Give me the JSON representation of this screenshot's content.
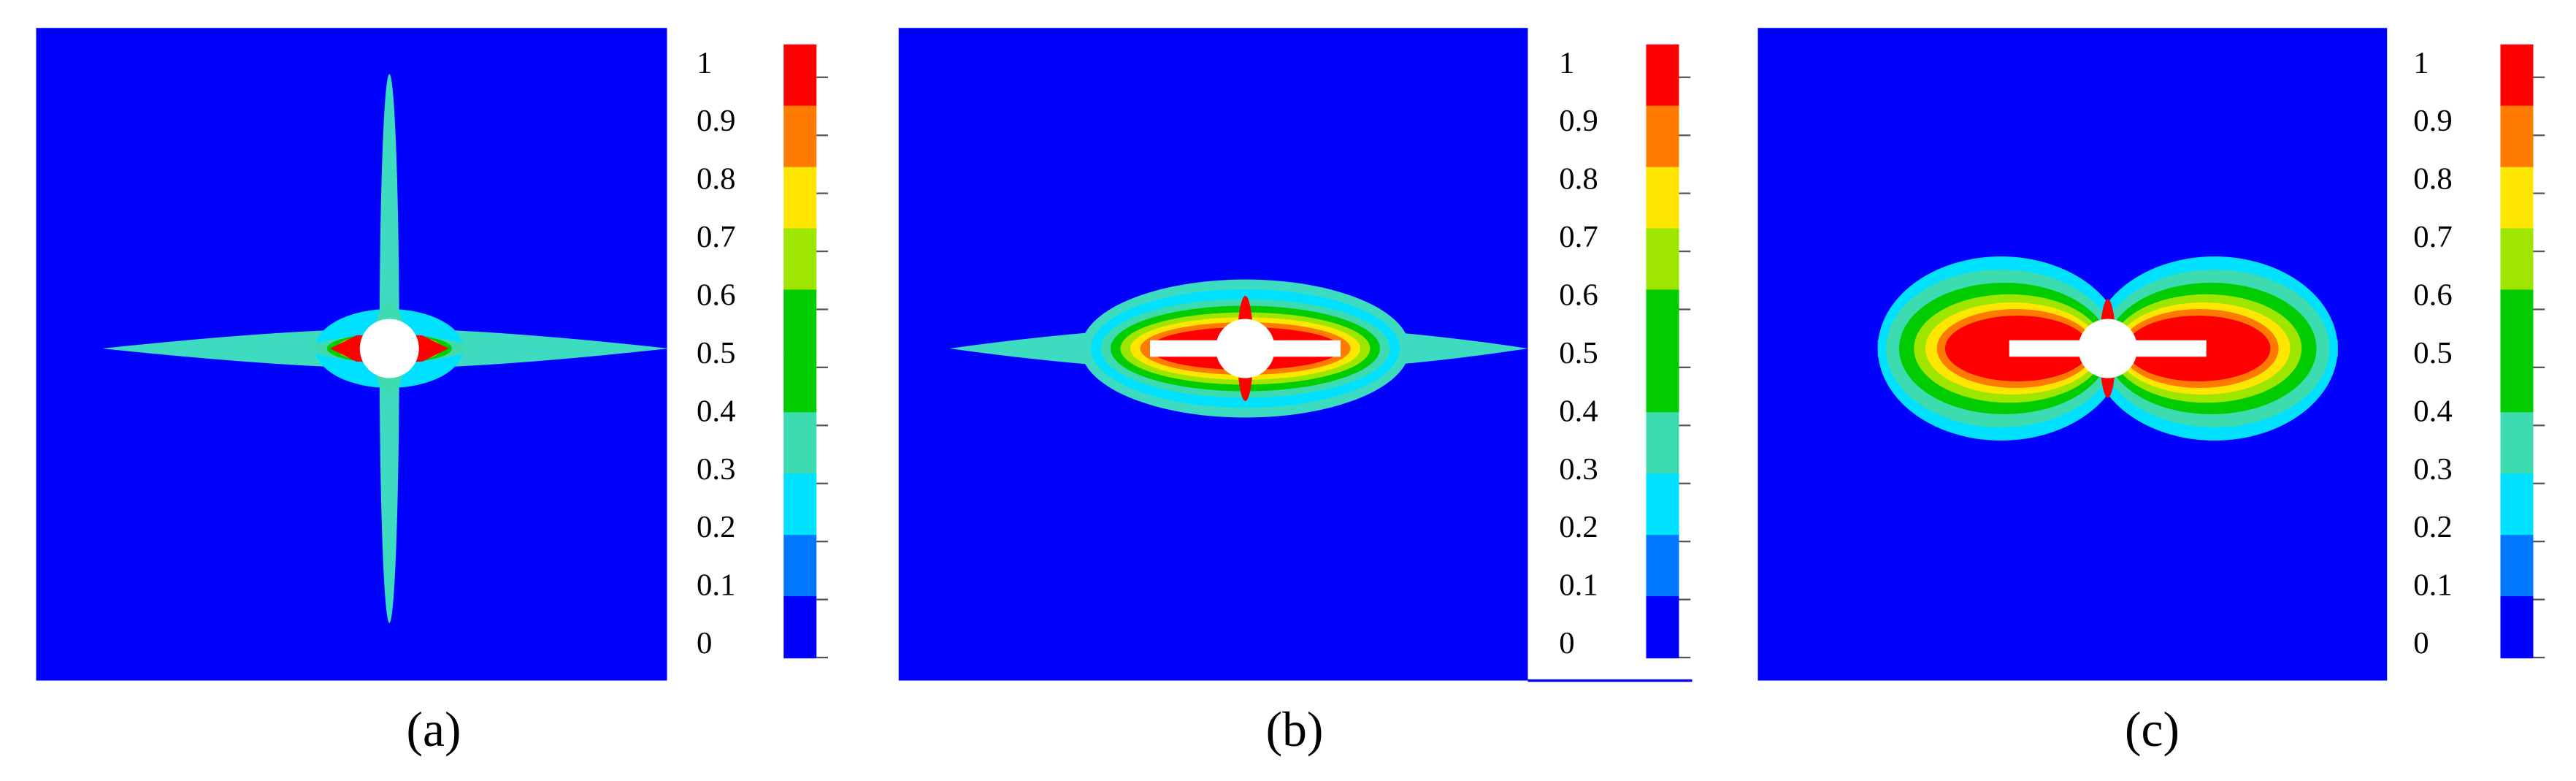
{
  "panels": [
    {
      "caption": "(a)"
    },
    {
      "caption": "(b)"
    },
    {
      "caption": "(c)"
    }
  ],
  "colorbar": {
    "ticks": [
      1,
      0.9,
      0.8,
      0.7,
      0.6,
      0.5,
      0.4,
      0.3,
      0.2,
      0.1,
      0
    ],
    "colors": [
      "#ff0000",
      "#ff7a00",
      "#ffe600",
      "#9ee600",
      "#00cc00",
      "#00cc00",
      "#3ddcb0",
      "#00e0ff",
      "#0078ff",
      "#0000ff"
    ]
  }
}
